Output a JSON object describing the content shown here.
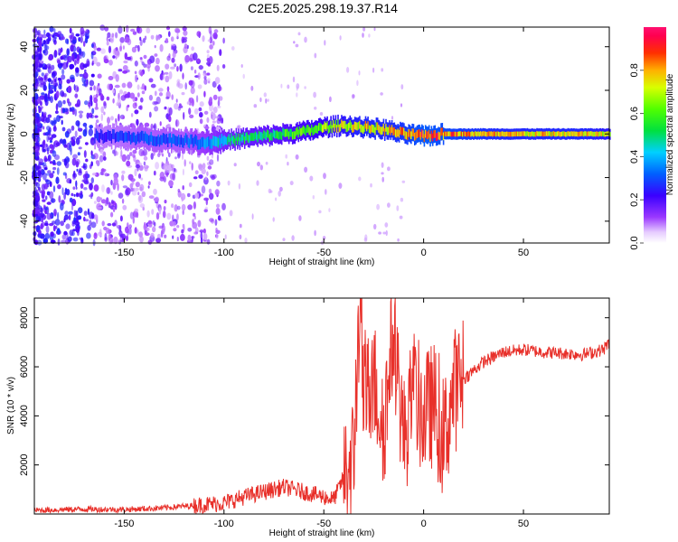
{
  "chart_data": [
    {
      "type": "heatmap",
      "title": "C2E5.2025.298.19.37.R14",
      "xlabel": "Height of straight line (km)",
      "ylabel": "Frequency (Hz)",
      "xlim": [
        -195,
        93
      ],
      "ylim": [
        -50,
        49
      ],
      "xticks": [
        -150,
        -100,
        -50,
        0,
        50
      ],
      "yticks": [
        -40,
        -20,
        0,
        20,
        40
      ],
      "xtick_labels": [
        "-150",
        "-100",
        "-50",
        "0",
        "50"
      ],
      "ytick_labels": [
        "-40",
        "-20",
        "0",
        "20",
        "40"
      ],
      "colorbar": {
        "label": "Normalized spectral amplitude",
        "range": [
          0,
          1
        ],
        "ticks": [
          0.0,
          0.2,
          0.4,
          0.6,
          0.8
        ],
        "tick_labels": [
          "0.0",
          "0.2",
          "0.4",
          "0.6",
          "0.8"
        ],
        "colormap": "rainbow (white-violet-blue-cyan-green-yellow-orange-red-magenta)"
      },
      "ridge": {
        "description": "Dominant frequency trace vs height",
        "x": [
          -160,
          -140,
          -120,
          -110,
          -100,
          -90,
          -80,
          -70,
          -60,
          -50,
          -40,
          -30,
          -20,
          -10,
          0,
          10,
          20,
          40,
          60,
          80,
          93
        ],
        "y": [
          -1,
          -2,
          -3,
          -4,
          -3,
          -2,
          -1,
          0,
          1,
          3,
          4,
          3,
          2,
          0,
          -1,
          0,
          0,
          0,
          0,
          0,
          0
        ],
        "amplitude": [
          0.25,
          0.3,
          0.3,
          0.35,
          0.45,
          0.5,
          0.5,
          0.55,
          0.6,
          0.65,
          0.7,
          0.75,
          0.75,
          0.8,
          0.9,
          0.85,
          0.8,
          0.75,
          0.75,
          0.75,
          0.7
        ]
      }
    },
    {
      "type": "line",
      "xlabel": "Height of straight line (km)",
      "ylabel": "SNR (10 * v/v)",
      "xlim": [
        -195,
        93
      ],
      "ylim": [
        0,
        8800
      ],
      "xticks": [
        -150,
        -100,
        -50,
        0,
        50
      ],
      "yticks": [
        2000,
        4000,
        6000,
        8000
      ],
      "xtick_labels": [
        "-150",
        "-100",
        "-50",
        "0",
        "50"
      ],
      "ytick_labels": [
        "2000",
        "4000",
        "6000",
        "8000"
      ],
      "series": [
        {
          "name": "SNR",
          "color": "#e8302a",
          "x": [
            -195,
            -170,
            -150,
            -130,
            -115,
            -100,
            -90,
            -80,
            -70,
            -60,
            -50,
            -45,
            -40,
            -35,
            -32,
            -30,
            -25,
            -20,
            -15,
            -10,
            -5,
            0,
            5,
            10,
            15,
            20,
            30,
            40,
            50,
            60,
            70,
            80,
            90,
            93
          ],
          "y": [
            150,
            200,
            180,
            250,
            350,
            450,
            700,
            900,
            1100,
            900,
            700,
            600,
            1500,
            2500,
            8800,
            4500,
            5500,
            3500,
            7500,
            3000,
            5000,
            4000,
            4500,
            3000,
            5000,
            5500,
            6200,
            6600,
            6700,
            6600,
            6550,
            6500,
            6700,
            7000
          ]
        }
      ]
    }
  ],
  "colors": {
    "line": "#e8302a",
    "axes": "#000000"
  }
}
